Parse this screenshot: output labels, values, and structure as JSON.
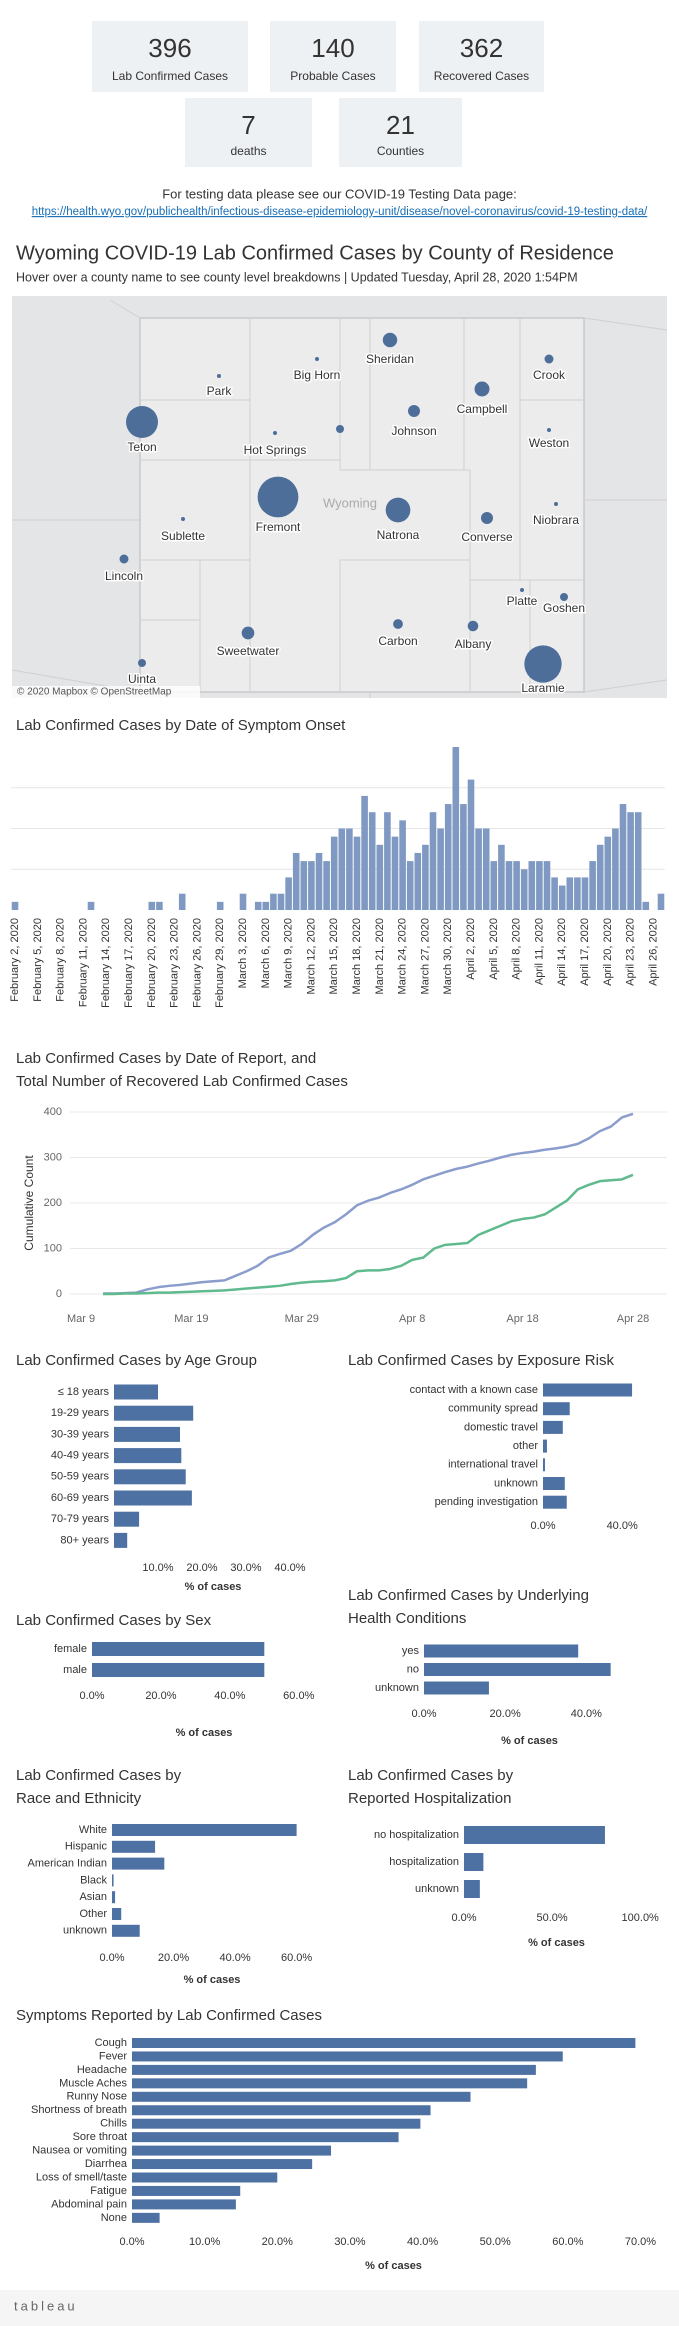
{
  "kpis": [
    {
      "value": 396,
      "label": "Lab Confirmed Cases"
    },
    {
      "value": 140,
      "label": "Probable Cases"
    },
    {
      "value": 362,
      "label": "Recovered Cases"
    },
    {
      "value": 7,
      "label": "deaths"
    },
    {
      "value": 21,
      "label": "Counties"
    }
  ],
  "testing_note": "For testing data please see our COVID-19 Testing Data page:",
  "testing_link": "https://health.wyo.gov/publichealth/infectious-disease-epidemiology-unit/disease/novel-coronavirus/covid-19-testing-data/",
  "map": {
    "title": "Wyoming COVID-19 Lab Confirmed Cases by County of Residence",
    "subtitle": "Hover over a county name to see county level breakdowns | Updated Tuesday, April 28, 2020 1:54PM",
    "state_label": "Wyoming",
    "attribution": "© 2020 Mapbox © OpenStreetMap",
    "color": "#4e6e9a",
    "counties": [
      {
        "name": "Park",
        "cases": 1
      },
      {
        "name": "Big Horn",
        "cases": 1
      },
      {
        "name": "Sheridan",
        "cases": 13
      },
      {
        "name": "Crook",
        "cases": 5
      },
      {
        "name": "Teton",
        "cases": 64
      },
      {
        "name": "Hot Springs",
        "cases": 1
      },
      {
        "name": null,
        "cases": 4
      },
      {
        "name": "Johnson",
        "cases": 9
      },
      {
        "name": "Campbell",
        "cases": 14
      },
      {
        "name": "Weston",
        "cases": 1
      },
      {
        "name": "Fremont",
        "cases": 104
      },
      {
        "name": "Natrona",
        "cases": 38
      },
      {
        "name": "Niobrara",
        "cases": 1
      },
      {
        "name": "Sublette",
        "cases": 1
      },
      {
        "name": "Converse",
        "cases": 9
      },
      {
        "name": "Lincoln",
        "cases": 5
      },
      {
        "name": "Platte",
        "cases": 1
      },
      {
        "name": "Goshen",
        "cases": 4
      },
      {
        "name": "Sweetwater",
        "cases": 10
      },
      {
        "name": "Carbon",
        "cases": 6
      },
      {
        "name": "Albany",
        "cases": 7
      },
      {
        "name": "Laramie",
        "cases": 87
      },
      {
        "name": "Uinta",
        "cases": 4
      }
    ]
  },
  "chart_data": [
    {
      "type": "bar",
      "title": "Lab Confirmed Cases by Date of Symptom Onset",
      "color": "#7f99c2",
      "ylim": [
        0,
        20
      ],
      "ygrid": [
        5,
        10,
        15
      ],
      "categories": [
        "February 2, 2020",
        null,
        null,
        "February 5, 2020",
        null,
        null,
        "February 8, 2020",
        null,
        null,
        "February 11, 2020",
        null,
        null,
        "February 14, 2020",
        null,
        null,
        "February 17, 2020",
        null,
        null,
        "February 20, 2020",
        null,
        null,
        "February 23, 2020",
        null,
        null,
        "February 26, 2020",
        null,
        null,
        "February 29, 2020",
        null,
        null,
        "March 3, 2020",
        null,
        null,
        "March 6, 2020",
        null,
        null,
        "March 9, 2020",
        null,
        null,
        "March 12, 2020",
        null,
        null,
        "March 15, 2020",
        null,
        null,
        "March 18, 2020",
        null,
        null,
        "March 21, 2020",
        null,
        null,
        "March 24, 2020",
        null,
        null,
        "March 27, 2020",
        null,
        null,
        "March 30, 2020",
        null,
        null,
        "April 2, 2020",
        null,
        null,
        "April 5, 2020",
        null,
        null,
        "April 8, 2020",
        null,
        null,
        "April 11, 2020",
        null,
        null,
        "April 14, 2020",
        null,
        null,
        "April 17, 2020",
        null,
        null,
        "April 20, 2020",
        null,
        null,
        "April 23, 2020",
        null,
        null,
        "April 26, 2020",
        null
      ],
      "values": [
        1,
        0,
        0,
        0,
        0,
        0,
        0,
        0,
        0,
        0,
        1,
        0,
        0,
        0,
        0,
        0,
        0,
        0,
        1,
        1,
        0,
        0,
        2,
        0,
        0,
        0,
        0,
        1,
        0,
        0,
        2,
        0,
        1,
        1,
        2,
        2,
        4,
        7,
        6,
        6,
        7,
        6,
        9,
        10,
        10,
        9,
        14,
        12,
        8,
        12,
        9,
        11,
        6,
        7,
        8,
        12,
        10,
        13,
        20,
        13,
        16,
        10,
        10,
        6,
        8,
        6,
        6,
        5,
        6,
        6,
        6,
        4,
        3,
        4,
        4,
        4,
        6,
        8,
        9,
        10,
        13,
        12,
        12,
        1,
        0,
        2
      ]
    },
    {
      "type": "line",
      "title": [
        "Lab Confirmed Cases by Date of Report, and",
        "Total Number of Recovered Lab Confirmed Cases"
      ],
      "y_label": "Cumulative Count",
      "ylim": [
        0,
        400
      ],
      "yticks": [
        0,
        100,
        200,
        300,
        400
      ],
      "grid": true,
      "x": [
        "Mar 9",
        null,
        null,
        null,
        null,
        null,
        null,
        null,
        null,
        null,
        "Mar 19",
        null,
        null,
        null,
        null,
        null,
        null,
        null,
        null,
        null,
        "Mar 29",
        null,
        null,
        null,
        null,
        null,
        null,
        null,
        null,
        null,
        "Apr 8",
        null,
        null,
        null,
        null,
        null,
        null,
        null,
        null,
        null,
        "Apr 18",
        null,
        null,
        null,
        null,
        null,
        null,
        null,
        null,
        null,
        "Apr 28"
      ],
      "series": [
        {
          "color": "#8b9dcc",
          "values": [
            null,
            null,
            1,
            1,
            2,
            3,
            10,
            15,
            18,
            20,
            23,
            26,
            28,
            30,
            40,
            50,
            62,
            80,
            88,
            95,
            110,
            130,
            146,
            158,
            175,
            195,
            205,
            212,
            222,
            230,
            240,
            252,
            260,
            268,
            275,
            280,
            287,
            293,
            300,
            306,
            310,
            313,
            317,
            320,
            324,
            330,
            342,
            358,
            368,
            388,
            396
          ]
        },
        {
          "color": "#5fba8e",
          "values": [
            null,
            null,
            0,
            0,
            1,
            1,
            2,
            3,
            3,
            4,
            5,
            6,
            7,
            8,
            10,
            12,
            14,
            16,
            18,
            22,
            25,
            27,
            28,
            30,
            35,
            50,
            52,
            52,
            55,
            62,
            75,
            80,
            100,
            108,
            110,
            112,
            130,
            140,
            150,
            160,
            165,
            168,
            175,
            190,
            205,
            230,
            240,
            248,
            250,
            252,
            262
          ]
        }
      ]
    },
    {
      "type": "barh",
      "title": "Lab Confirmed Cases by Age Group",
      "color": "#4e71a3",
      "x_label": "% of cases",
      "categories": [
        "≤ 18 years",
        "19-29 years",
        "30-39 years",
        "40-49 years",
        "50-59 years",
        "60-69 years",
        "70-79 years",
        "80+ years"
      ],
      "values": [
        10,
        18,
        15,
        15.3,
        16.3,
        17.7,
        5.7,
        3
      ],
      "xlim": [
        0,
        45
      ],
      "xticks": [
        {
          "value": 10,
          "label": "10.0%"
        },
        {
          "value": 20,
          "label": "20.0%"
        },
        {
          "value": 30,
          "label": "30.0%"
        },
        {
          "value": 40,
          "label": "40.0%"
        }
      ]
    },
    {
      "type": "barh",
      "title": "Lab Confirmed Cases by Exposure Risk",
      "color": "#4e71a3",
      "categories": [
        "contact with a known case",
        "community spread",
        "domestic travel",
        "other",
        "international travel",
        "unknown",
        "pending investigation"
      ],
      "values": [
        45,
        13.5,
        10,
        2,
        1,
        11,
        12
      ],
      "xlim": [
        0,
        48
      ],
      "xticks": [
        {
          "value": 0,
          "label": "0.0%"
        },
        {
          "value": 40,
          "label": "40.0%"
        }
      ]
    },
    {
      "type": "barh",
      "title": "Lab Confirmed Cases by Sex",
      "color": "#4e71a3",
      "x_label": "% of cases",
      "categories": [
        "female",
        "male"
      ],
      "values": [
        50,
        50
      ],
      "xlim": [
        0,
        65
      ],
      "xticks": [
        {
          "value": 0,
          "label": "0.0%"
        },
        {
          "value": 20,
          "label": "20.0%"
        },
        {
          "value": 40,
          "label": "40.0%"
        },
        {
          "value": 60,
          "label": "60.0%"
        }
      ]
    },
    {
      "type": "barh",
      "title": [
        "Lab Confirmed Cases by Underlying",
        "Health Conditions"
      ],
      "color": "#4e71a3",
      "x_label": "% of cases",
      "categories": [
        "yes",
        "no",
        "unknown"
      ],
      "values": [
        38,
        46,
        16
      ],
      "xlim": [
        0,
        52
      ],
      "xticks": [
        {
          "value": 0,
          "label": "0.0%"
        },
        {
          "value": 20,
          "label": "20.0%"
        },
        {
          "value": 40,
          "label": "40.0%"
        }
      ]
    },
    {
      "type": "barh",
      "title": [
        "Lab Confirmed Cases by",
        "Race and Ethnicity"
      ],
      "color": "#4e71a3",
      "x_label": "% of cases",
      "categories": [
        "White",
        "Hispanic",
        "American Indian",
        "Black",
        "Asian",
        "Other",
        "unknown"
      ],
      "values": [
        60,
        14,
        17,
        0.5,
        1,
        3,
        9
      ],
      "xlim": [
        0,
        65
      ],
      "xticks": [
        {
          "value": 0,
          "label": "0.0%"
        },
        {
          "value": 20,
          "label": "20.0%"
        },
        {
          "value": 40,
          "label": "40.0%"
        },
        {
          "value": 60,
          "label": "60.0%"
        }
      ]
    },
    {
      "type": "barh",
      "title": [
        "Lab Confirmed Cases by",
        "Reported Hospitalization"
      ],
      "color": "#4e71a3",
      "x_label": "% of cases",
      "categories": [
        "no hospitalization",
        "hospitalization",
        "unknown"
      ],
      "values": [
        80,
        11,
        9
      ],
      "xlim": [
        0,
        105
      ],
      "xticks": [
        {
          "value": 0,
          "label": "0.0%"
        },
        {
          "value": 50,
          "label": "50.0%"
        },
        {
          "value": 100,
          "label": "100.0%"
        }
      ]
    },
    {
      "type": "barh",
      "title": "Symptoms Reported by Lab Confirmed Cases",
      "color": "#4e71a3",
      "x_label": "% of cases",
      "categories": [
        "Cough",
        "Fever",
        "Headache",
        "Muscle Aches",
        "Runny Nose",
        "Shortness of breath",
        "Chills",
        "Sore throat",
        "Nausea or vomiting",
        "Diarrhea",
        "Loss of smell/taste",
        "Fatigue",
        "Abdominal pain",
        "None"
      ],
      "values": [
        69.3,
        59.3,
        55.6,
        54.4,
        46.6,
        41.1,
        39.7,
        36.7,
        27.4,
        24.8,
        20,
        14.9,
        14.3,
        3.8
      ],
      "xlim": [
        0,
        72
      ],
      "xticks": [
        {
          "value": 0,
          "label": "0.0%"
        },
        {
          "value": 10,
          "label": "10.0%"
        },
        {
          "value": 20,
          "label": "20.0%"
        },
        {
          "value": 30,
          "label": "30.0%"
        },
        {
          "value": 40,
          "label": "40.0%"
        },
        {
          "value": 50,
          "label": "50.0%"
        },
        {
          "value": 60,
          "label": "60.0%"
        },
        {
          "value": 70,
          "label": "70.0%"
        }
      ]
    }
  ],
  "footer": {
    "logo": "tableau"
  }
}
